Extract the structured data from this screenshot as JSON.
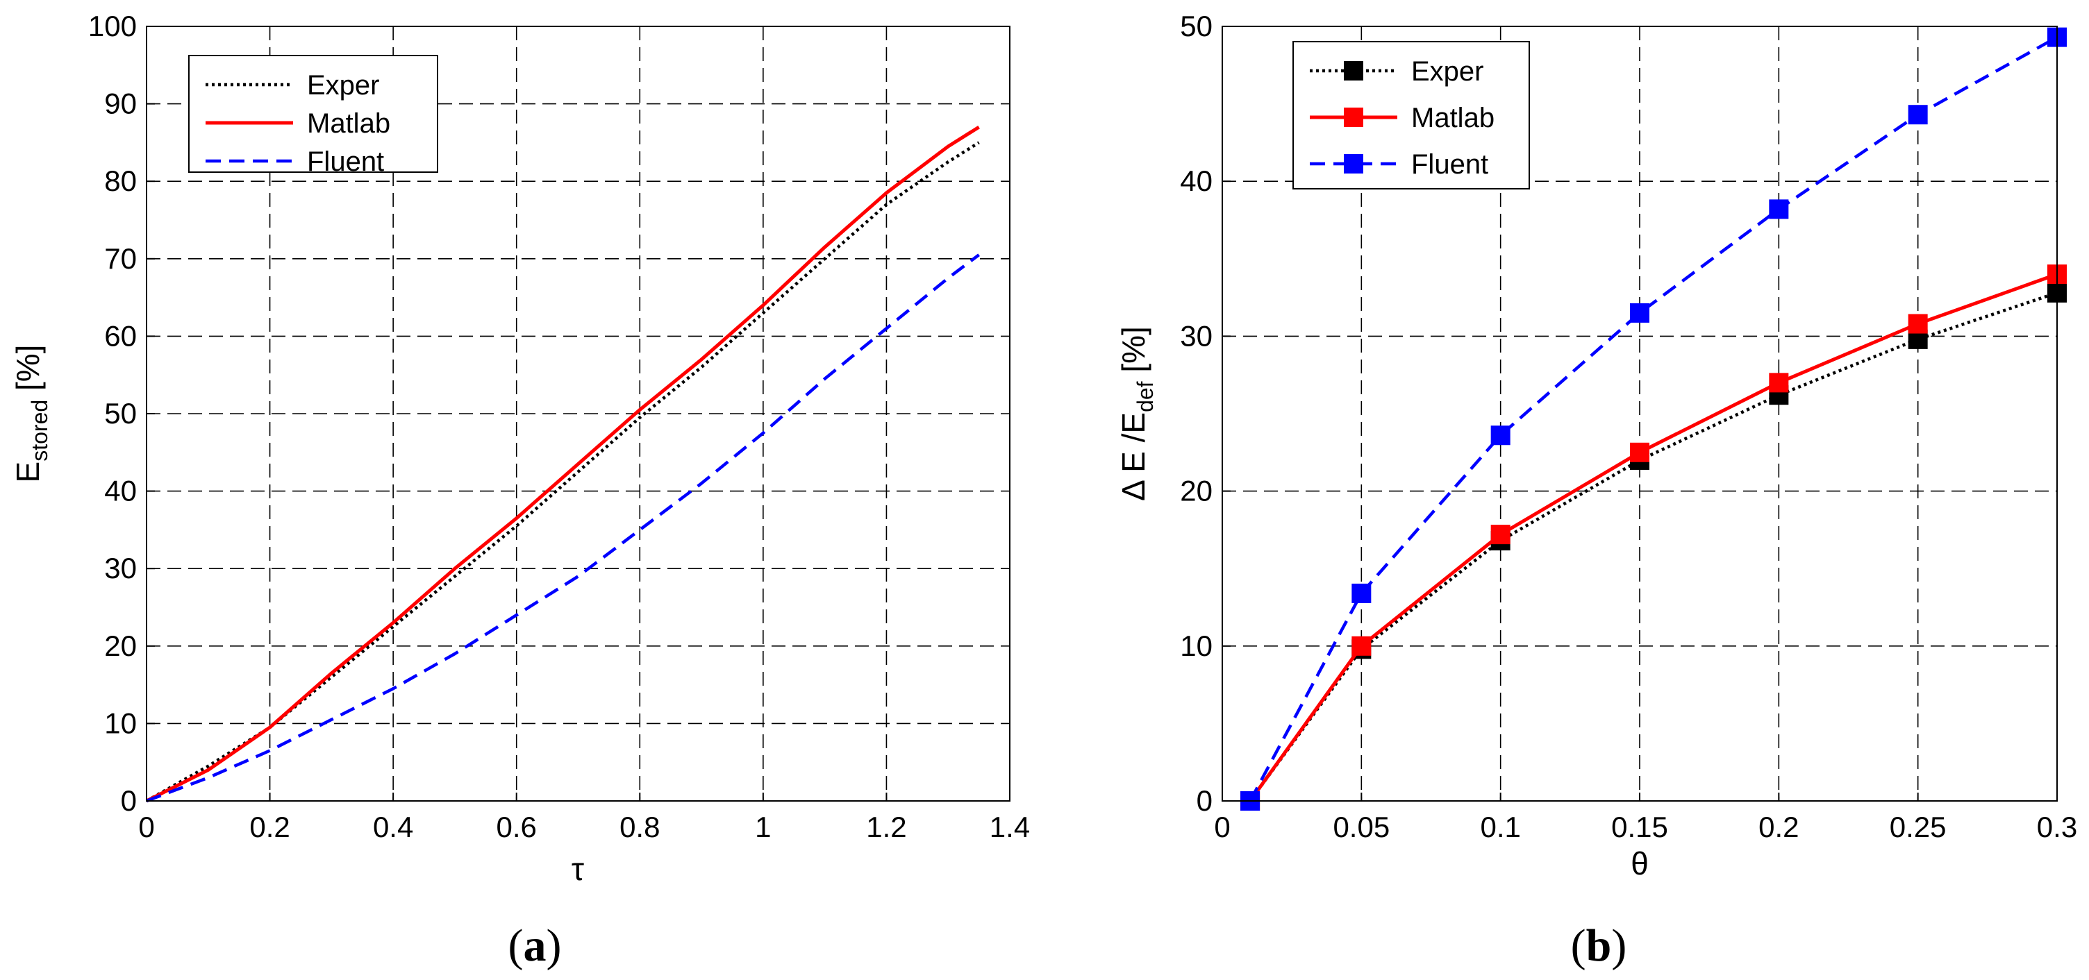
{
  "charts": {
    "a": {
      "sublabel": {
        "open": "(",
        "letter": "a",
        "close": ")"
      },
      "xlabel": "τ",
      "ylabel_main": "E",
      "ylabel_sub": "stored",
      "ylabel_unit": " [%]"
    },
    "b": {
      "sublabel": {
        "open": "(",
        "letter": "b",
        "close": ")"
      },
      "xlabel": "θ",
      "ylabel_pre": "Δ E /E",
      "ylabel_sub": "def",
      "ylabel_unit": " [%]"
    }
  },
  "chart_data": [
    {
      "type": "line",
      "xlabel": "τ",
      "ylabel": "E_stored [%]",
      "xlim": [
        0,
        1.4
      ],
      "ylim": [
        0,
        100
      ],
      "xticks": [
        0,
        0.2,
        0.4,
        0.6,
        0.8,
        1,
        1.2,
        1.4
      ],
      "xtick_labels": [
        "0",
        "0.2",
        "0.4",
        "0.6",
        "0.8",
        "1",
        "1.2",
        "1.4"
      ],
      "yticks": [
        0,
        10,
        20,
        30,
        40,
        50,
        60,
        70,
        80,
        90,
        100
      ],
      "ytick_labels": [
        "0",
        "10",
        "20",
        "30",
        "40",
        "50",
        "60",
        "70",
        "80",
        "90",
        "100"
      ],
      "grid": true,
      "legend_position": "top-left",
      "series": [
        {
          "name": "Exper",
          "color": "#000000",
          "style": "dotted",
          "x": [
            0,
            0.1,
            0.2,
            0.3,
            0.4,
            0.5,
            0.6,
            0.7,
            0.8,
            0.9,
            1.0,
            1.1,
            1.2,
            1.3,
            1.35
          ],
          "y": [
            0,
            4.5,
            9.5,
            16,
            22.5,
            29,
            35.5,
            42.5,
            49.5,
            56,
            63,
            70,
            77,
            82.5,
            85
          ]
        },
        {
          "name": "Matlab",
          "color": "#ff0000",
          "style": "solid",
          "x": [
            0,
            0.1,
            0.2,
            0.3,
            0.4,
            0.5,
            0.6,
            0.7,
            0.8,
            0.9,
            1.0,
            1.1,
            1.2,
            1.3,
            1.35
          ],
          "y": [
            0,
            4,
            9.5,
            16.5,
            23,
            30,
            36.5,
            43.5,
            50.5,
            57,
            64,
            71.5,
            78.5,
            84.5,
            87
          ]
        },
        {
          "name": "Fluent",
          "color": "#0000ff",
          "style": "dashed",
          "x": [
            0,
            0.1,
            0.2,
            0.3,
            0.4,
            0.5,
            0.6,
            0.7,
            0.8,
            0.9,
            1.0,
            1.1,
            1.2,
            1.3,
            1.35
          ],
          "y": [
            0,
            3,
            6.5,
            10.5,
            14.5,
            19,
            24,
            29,
            35,
            41,
            47.5,
            54.5,
            61,
            67.5,
            70.5
          ]
        }
      ]
    },
    {
      "type": "line",
      "xlabel": "θ",
      "ylabel": "Δ E /E_def [%]",
      "xlim": [
        0,
        0.3
      ],
      "ylim": [
        0,
        50
      ],
      "xticks": [
        0,
        0.05,
        0.1,
        0.15,
        0.2,
        0.25,
        0.3
      ],
      "xtick_labels": [
        "0",
        "0.05",
        "0.1",
        "0.15",
        "0.2",
        "0.25",
        "0.3"
      ],
      "yticks": [
        0,
        10,
        20,
        30,
        40,
        50
      ],
      "ytick_labels": [
        "0",
        "10",
        "20",
        "30",
        "40",
        "50"
      ],
      "grid": true,
      "legend_position": "top-left",
      "series": [
        {
          "name": "Exper",
          "color": "#000000",
          "style": "dotted",
          "marker": "square",
          "x": [
            0.01,
            0.05,
            0.1,
            0.15,
            0.2,
            0.25,
            0.3
          ],
          "y": [
            0,
            9.8,
            16.8,
            22,
            26.2,
            29.8,
            32.8
          ]
        },
        {
          "name": "Matlab",
          "color": "#ff0000",
          "style": "solid",
          "marker": "square",
          "x": [
            0.01,
            0.05,
            0.1,
            0.15,
            0.2,
            0.25,
            0.3
          ],
          "y": [
            0,
            10,
            17.2,
            22.5,
            27,
            30.8,
            34
          ]
        },
        {
          "name": "Fluent",
          "color": "#0000ff",
          "style": "dashed",
          "marker": "square",
          "x": [
            0.01,
            0.05,
            0.1,
            0.15,
            0.2,
            0.25,
            0.3
          ],
          "y": [
            0,
            13.4,
            23.6,
            31.5,
            38.2,
            44.3,
            49.3
          ]
        }
      ]
    }
  ]
}
